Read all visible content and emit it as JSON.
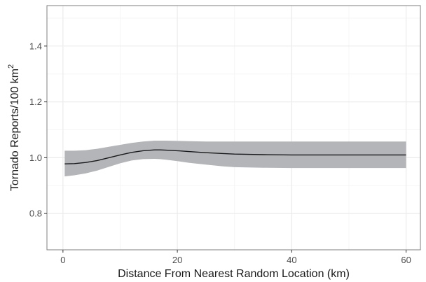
{
  "chart_data": {
    "type": "line",
    "title": "",
    "xlabel": "Distance From Nearest Random Location (km)",
    "ylabel": "Tornado Reports/100 km",
    "ylabel_superscript": "2",
    "xlim": [
      -2.8,
      62.5
    ],
    "ylim": [
      0.67,
      1.545
    ],
    "x_ticks": [
      0,
      20,
      40,
      60
    ],
    "x_tick_labels": [
      "0",
      "20",
      "40",
      "60"
    ],
    "y_ticks": [
      0.8,
      1.0,
      1.2,
      1.4
    ],
    "y_tick_labels": [
      "0.8",
      "1.0",
      "1.2",
      "1.4"
    ],
    "x_minor_ticks": [
      10,
      30,
      50
    ],
    "y_minor_ticks": [
      0.9,
      1.1,
      1.3,
      1.5
    ],
    "grid": true,
    "series": [
      {
        "x": [
          0.3,
          2,
          4,
          6,
          8,
          10,
          12,
          14,
          16,
          17,
          18,
          20,
          22,
          25,
          28,
          30,
          35,
          40,
          45,
          50,
          55,
          60
        ],
        "y": [
          0.978,
          0.979,
          0.983,
          0.99,
          1.0,
          1.01,
          1.019,
          1.025,
          1.028,
          1.028,
          1.027,
          1.025,
          1.022,
          1.018,
          1.015,
          1.013,
          1.011,
          1.01,
          1.01,
          1.01,
          1.01,
          1.01
        ],
        "lower": [
          0.933,
          0.937,
          0.944,
          0.954,
          0.967,
          0.98,
          0.99,
          0.995,
          0.996,
          0.995,
          0.993,
          0.988,
          0.982,
          0.975,
          0.969,
          0.966,
          0.964,
          0.963,
          0.963,
          0.963,
          0.963,
          0.963
        ],
        "upper": [
          1.025,
          1.025,
          1.027,
          1.032,
          1.039,
          1.046,
          1.053,
          1.058,
          1.061,
          1.061,
          1.061,
          1.06,
          1.059,
          1.058,
          1.058,
          1.058,
          1.058,
          1.058,
          1.058,
          1.058,
          1.058,
          1.058
        ]
      }
    ],
    "colors": {
      "line": "#1a1a1a",
      "band": "#b4b5b9",
      "grid_major": "#ebebeb",
      "grid_minor": "#f5f5f5",
      "panel_border": "#7f7f7f"
    }
  }
}
